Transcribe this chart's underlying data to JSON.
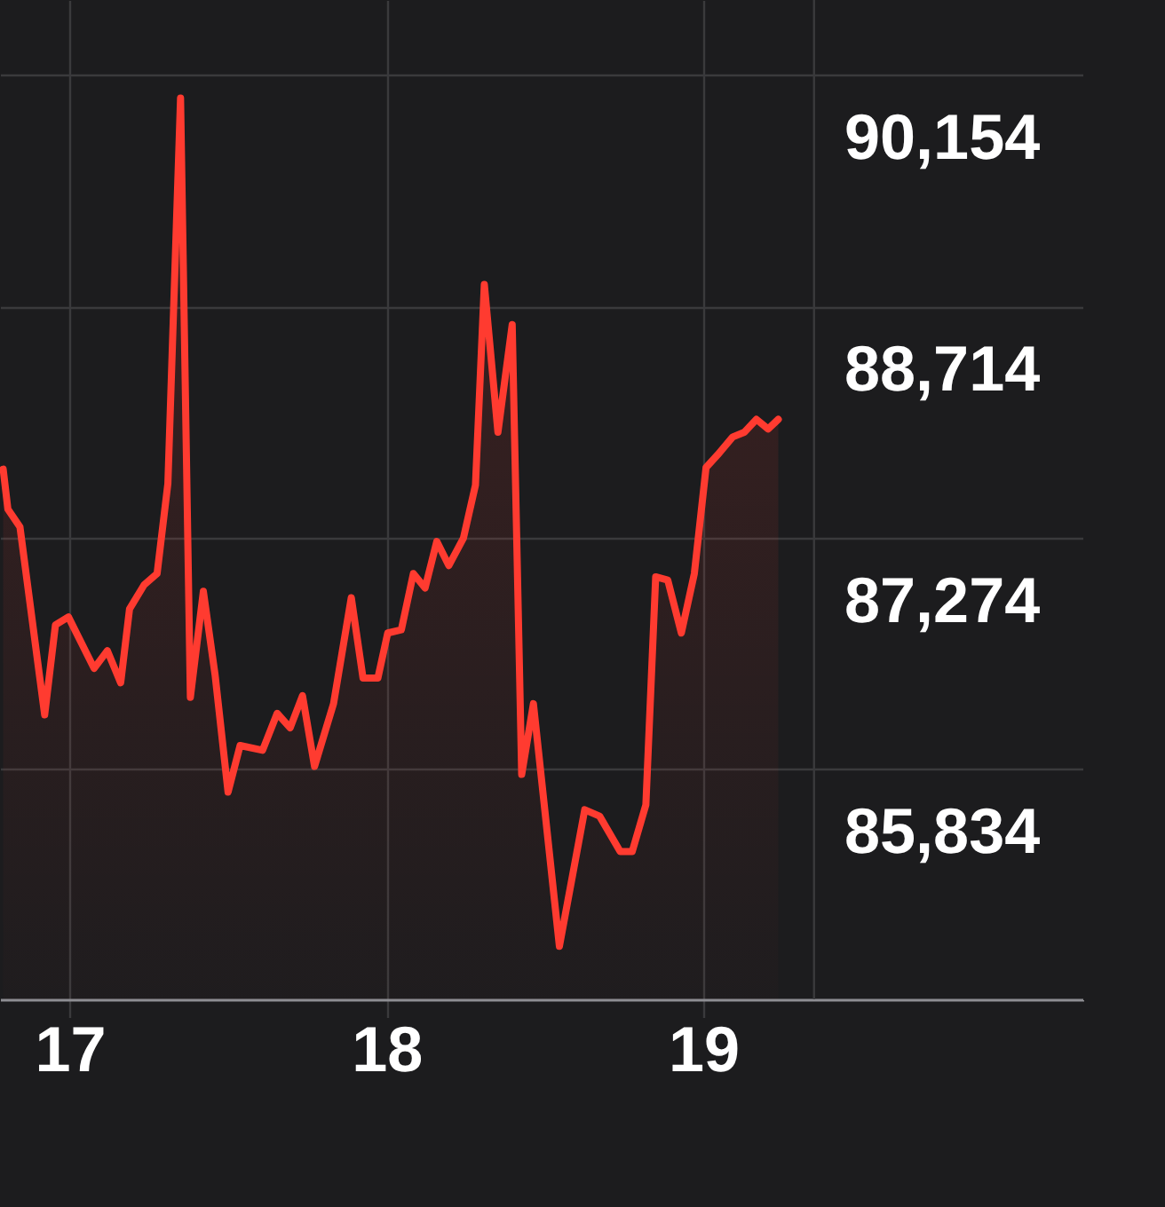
{
  "chart_data": {
    "type": "area",
    "x": [
      16.79,
      16.805,
      16.843,
      16.921,
      16.955,
      16.996,
      17.077,
      17.119,
      17.161,
      17.189,
      17.235,
      17.276,
      17.31,
      17.35,
      17.381,
      17.422,
      17.459,
      17.5,
      17.538,
      17.609,
      17.655,
      17.696,
      17.735,
      17.773,
      17.833,
      17.889,
      17.926,
      17.973,
      18.004,
      18.047,
      18.085,
      18.122,
      18.159,
      18.197,
      18.243,
      18.281,
      18.309,
      18.352,
      18.397,
      18.427,
      18.464,
      18.546,
      18.626,
      18.673,
      18.738,
      18.776,
      18.819,
      18.85,
      18.888,
      18.931,
      18.972,
      19.009,
      19.046,
      19.093,
      19.13,
      19.168,
      19.205,
      19.237
    ],
    "series": [
      {
        "color": "#ff3b30",
        "values": [
          87700,
          87450,
          87340,
          86170,
          86730,
          86780,
          86460,
          86570,
          86370,
          86830,
          86980,
          87050,
          87610,
          90010,
          86280,
          86940,
          86420,
          85690,
          85980,
          85950,
          86180,
          86090,
          86290,
          85850,
          86240,
          86900,
          86400,
          86400,
          86680,
          86700,
          87050,
          86960,
          87250,
          87100,
          87270,
          87600,
          88850,
          87930,
          88600,
          85800,
          86240,
          84730,
          85580,
          85540,
          85320,
          85320,
          85610,
          87030,
          87010,
          86680,
          87050,
          87710,
          87790,
          87900,
          87930,
          88010,
          87950,
          88010
        ]
      }
    ],
    "xlim": [
      16.78,
      20.2
    ],
    "xticks": [
      17,
      18,
      19
    ],
    "ylim": [
      84400,
      90620
    ],
    "yticks": [
      {
        "value": 85834,
        "label": "85,834"
      },
      {
        "value": 87274,
        "label": "87,274"
      },
      {
        "value": 88714,
        "label": "88,714"
      },
      {
        "value": 90154,
        "label": "90,154"
      }
    ],
    "grid": true,
    "ref_lines": [
      {
        "axis": "x",
        "value": 19.35,
        "color": "#3a3a3c"
      }
    ]
  }
}
